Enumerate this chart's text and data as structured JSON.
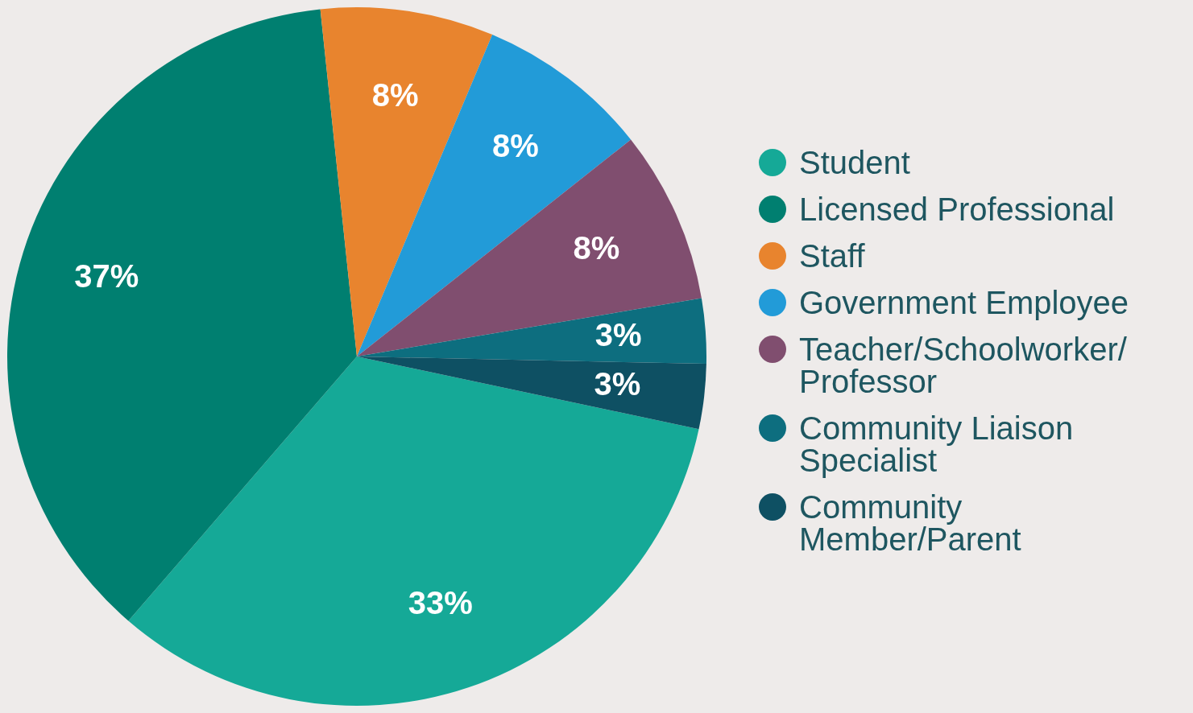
{
  "chart_data": {
    "type": "pie",
    "categories": [
      "Student",
      "Licensed Professional",
      "Staff",
      "Government Employee",
      "Teacher/Schoolworker/ Professor",
      "Community Liaison Specialist",
      "Community Member/Parent"
    ],
    "values": [
      33,
      37,
      8,
      8,
      8,
      3,
      3
    ],
    "colors": [
      "#15a997",
      "#007f70",
      "#e8842e",
      "#229bd8",
      "#804e6f",
      "#0d6e7f",
      "#0e5063"
    ],
    "value_labels": [
      "33%",
      "37%",
      "8%",
      "8%",
      "8%",
      "3%",
      "3%"
    ],
    "legend": "right"
  }
}
